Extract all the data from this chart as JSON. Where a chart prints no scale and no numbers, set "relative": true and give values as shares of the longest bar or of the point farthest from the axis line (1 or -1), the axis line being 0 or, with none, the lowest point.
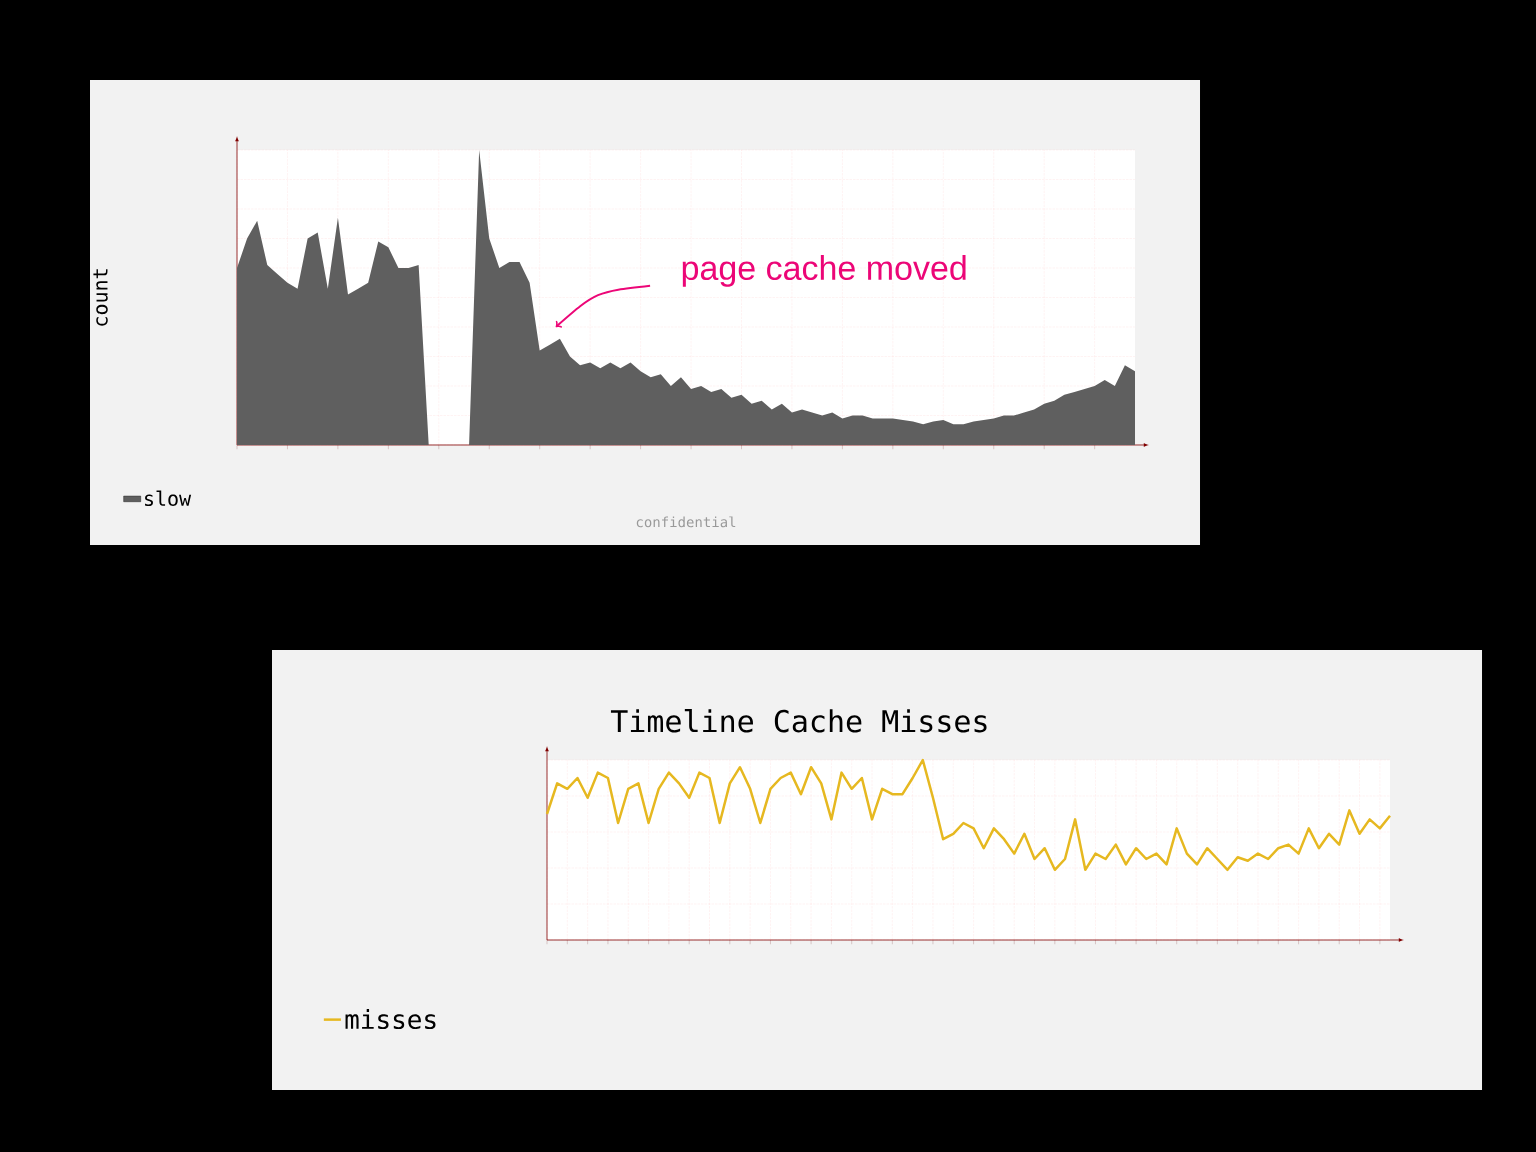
{
  "chart_data": [
    {
      "type": "area",
      "ylabel": "count",
      "relative": true,
      "grid": true,
      "legend": "bottom left",
      "categories": [
        null,
        null,
        null,
        null,
        null,
        null,
        null,
        null,
        null,
        null,
        null,
        null,
        null,
        null,
        null,
        null,
        null,
        null,
        null,
        null,
        null,
        null,
        null,
        null,
        null,
        null,
        null,
        null,
        null,
        null,
        null,
        null,
        null,
        null,
        null,
        null,
        null,
        null,
        null,
        null,
        null,
        null,
        null,
        null,
        null,
        null,
        null,
        null,
        null,
        null,
        null,
        null,
        null,
        null,
        null,
        null,
        null,
        null,
        null,
        null,
        null,
        null,
        null,
        null,
        null,
        null,
        null,
        null,
        null,
        null,
        null,
        null,
        null,
        null,
        null,
        null,
        null,
        null,
        null,
        null,
        null,
        null,
        null,
        null,
        null,
        null,
        null,
        null,
        null,
        null
      ],
      "series": [
        {
          "name": "slow",
          "color": "#5f5f5f",
          "values": [
            0.6,
            0.7,
            0.76,
            0.61,
            0.58,
            0.55,
            0.53,
            0.7,
            0.72,
            0.53,
            0.77,
            0.51,
            0.53,
            0.55,
            0.69,
            0.67,
            0.6,
            0.6,
            0.61,
            0,
            0,
            0,
            0,
            0,
            1.0,
            0.7,
            0.6,
            0.62,
            0.62,
            0.55,
            0.32,
            0.34,
            0.36,
            0.3,
            0.27,
            0.28,
            0.26,
            0.28,
            0.26,
            0.28,
            0.25,
            0.23,
            0.24,
            0.2,
            0.23,
            0.19,
            0.2,
            0.18,
            0.19,
            0.16,
            0.17,
            0.14,
            0.15,
            0.12,
            0.14,
            0.11,
            0.12,
            0.11,
            0.1,
            0.11,
            0.09,
            0.1,
            0.1,
            0.09,
            0.09,
            0.09,
            0.085,
            0.08,
            0.07,
            0.08,
            0.085,
            0.07,
            0.07,
            0.08,
            0.085,
            0.09,
            0.1,
            0.1,
            0.11,
            0.12,
            0.14,
            0.15,
            0.17,
            0.18,
            0.19,
            0.2,
            0.22,
            0.2,
            0.27,
            0.25
          ]
        }
      ],
      "annotations": [
        "page cache moved",
        "confidential"
      ]
    },
    {
      "type": "line",
      "title": "Timeline Cache Misses",
      "relative": true,
      "grid": true,
      "legend": "bottom left",
      "categories": [
        null,
        null,
        null,
        null,
        null,
        null,
        null,
        null,
        null,
        null,
        null,
        null,
        null,
        null,
        null,
        null,
        null,
        null,
        null,
        null,
        null,
        null,
        null,
        null,
        null,
        null,
        null,
        null,
        null,
        null,
        null,
        null,
        null,
        null,
        null,
        null,
        null,
        null,
        null,
        null,
        null,
        null,
        null,
        null,
        null,
        null,
        null,
        null,
        null,
        null,
        null,
        null,
        null,
        null,
        null,
        null,
        null,
        null,
        null,
        null,
        null,
        null,
        null,
        null,
        null,
        null,
        null,
        null,
        null,
        null,
        null,
        null,
        null,
        null,
        null,
        null,
        null,
        null,
        null,
        null,
        null,
        null,
        null,
        null
      ],
      "series": [
        {
          "name": "misses",
          "color": "#e6b820",
          "values": [
            0.7,
            0.87,
            0.84,
            0.9,
            0.79,
            0.93,
            0.9,
            0.65,
            0.84,
            0.87,
            0.65,
            0.84,
            0.93,
            0.87,
            0.79,
            0.93,
            0.9,
            0.65,
            0.87,
            0.96,
            0.84,
            0.65,
            0.84,
            0.9,
            0.93,
            0.81,
            0.96,
            0.87,
            0.67,
            0.93,
            0.84,
            0.9,
            0.67,
            0.84,
            0.81,
            0.81,
            0.9,
            1.0,
            0.79,
            0.56,
            0.59,
            0.65,
            0.62,
            0.51,
            0.62,
            0.56,
            0.48,
            0.59,
            0.45,
            0.51,
            0.39,
            0.45,
            0.67,
            0.39,
            0.48,
            0.45,
            0.53,
            0.42,
            0.51,
            0.45,
            0.48,
            0.42,
            0.62,
            0.48,
            0.42,
            0.51,
            0.45,
            0.39,
            0.46,
            0.44,
            0.48,
            0.45,
            0.51,
            0.53,
            0.48,
            0.62,
            0.51,
            0.59,
            0.53,
            0.72,
            0.59,
            0.67,
            0.62,
            0.69
          ]
        }
      ]
    }
  ]
}
